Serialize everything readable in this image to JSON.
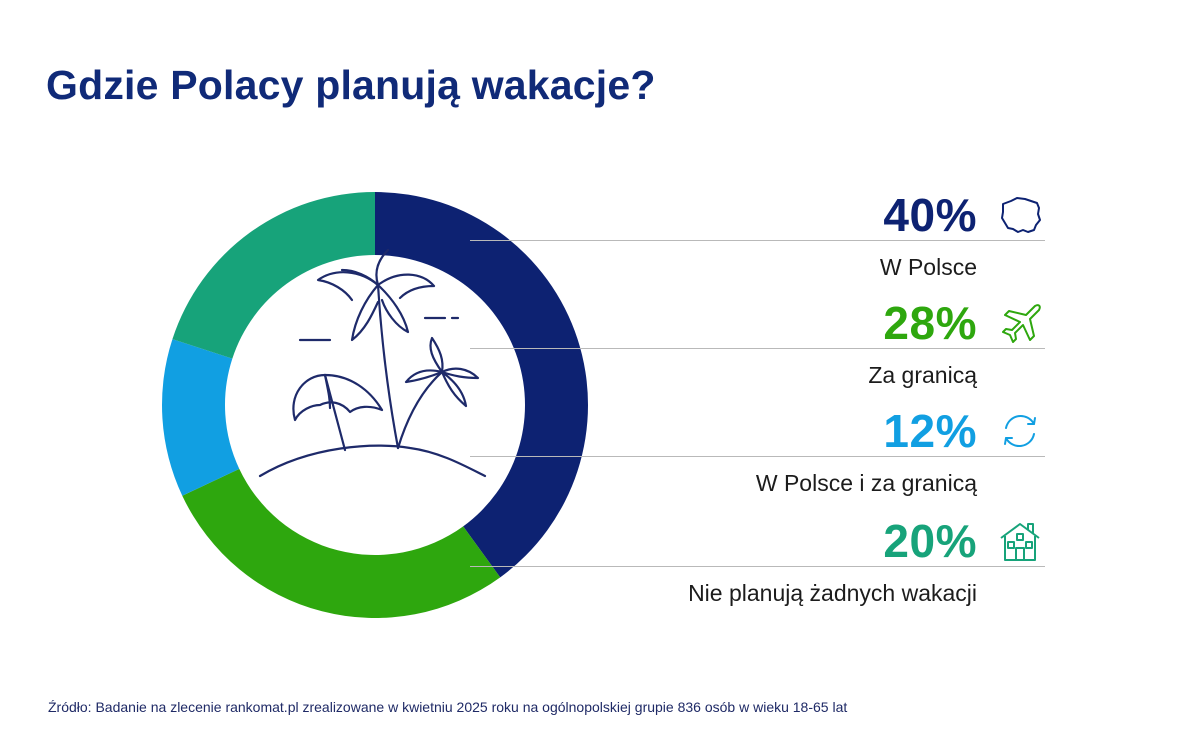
{
  "title": "Gdzie Polacy planują wakacje?",
  "chart_data": {
    "type": "pie",
    "title": "Gdzie Polacy planują wakacje?",
    "categories": [
      "W Polsce",
      "Za granicą",
      "W Polsce i za granicą",
      "Nie planują żadnych wakacji"
    ],
    "values": [
      40,
      28,
      12,
      20
    ],
    "labels": [
      "40%",
      "28%",
      "12%",
      "20%"
    ],
    "colors": [
      "#0d2272",
      "#2ea70e",
      "#119fe2",
      "#17a37a"
    ],
    "icons": [
      "poland-map-icon",
      "airplane-icon",
      "cycle-arrows-icon",
      "house-icon"
    ],
    "center_icon": "palm-island-umbrella-icon",
    "legend": "right"
  },
  "source": "Źródło: Badanie na zlecenie rankomat.pl zrealizowane w kwietniu 2025 roku na ogólnopolskiej grupie 836 osób w wieku 18-65 lat"
}
